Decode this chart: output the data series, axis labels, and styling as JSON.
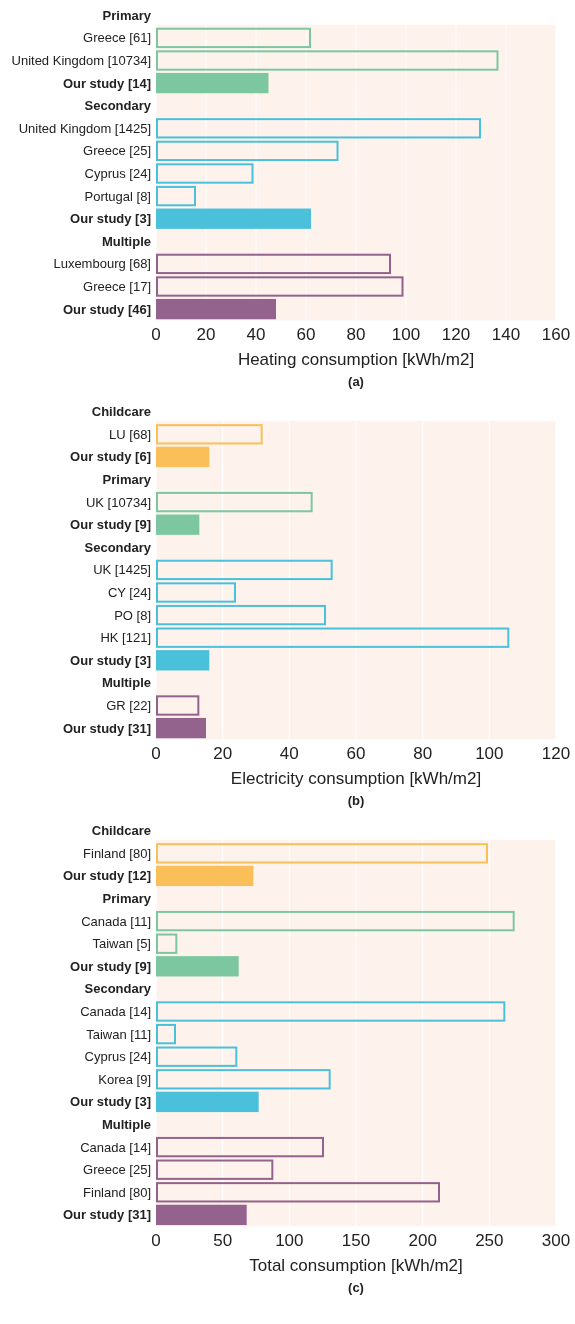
{
  "chart_data": [
    {
      "type": "bar",
      "orientation": "horizontal",
      "xlabel": "Heating consumption [kWh/m2]",
      "annotations": [
        "(a)"
      ],
      "xlim": [
        0,
        160
      ],
      "xticks": [
        0,
        20,
        40,
        60,
        80,
        100,
        120,
        140,
        160
      ],
      "grid": "x",
      "categories": [
        "Primary",
        "Greece [61]",
        "United Kingdom [10734]",
        "Our study [14]",
        "Secondary",
        "United Kingdom [1425]",
        "Greece [25]",
        "Cyprus [24]",
        "Portugal [8]",
        "Our study [3]",
        "Multiple",
        "Luxembourg [68]",
        "Greece [17]",
        "Our study [46]"
      ],
      "series": [
        {
          "color": "#7cc7a0",
          "values": [
            null,
            62,
            137,
            45,
            null,
            null,
            null,
            null,
            null,
            null,
            null,
            null,
            null,
            null
          ]
        },
        {
          "color": "#4bc0da",
          "values": [
            null,
            null,
            null,
            null,
            null,
            130,
            73,
            39,
            16,
            62,
            null,
            null,
            null,
            null
          ]
        },
        {
          "color": "#93628d",
          "values": [
            null,
            null,
            null,
            null,
            null,
            null,
            null,
            null,
            null,
            null,
            null,
            94,
            99,
            48
          ]
        }
      ]
    },
    {
      "type": "bar",
      "orientation": "horizontal",
      "xlabel": "Electricity consumption [kWh/m2]",
      "annotations": [
        "(b)"
      ],
      "xlim": [
        0,
        120
      ],
      "xticks": [
        0,
        20,
        40,
        60,
        80,
        100,
        120
      ],
      "grid": "x",
      "categories": [
        "Childcare",
        "LU [68]",
        "Our study [6]",
        "Primary",
        "UK [10734]",
        "Our study [9]",
        "Secondary",
        "UK [1425]",
        "CY [24]",
        "PO [8]",
        "HK [121]",
        "Our study [3]",
        "Multiple",
        "GR [22]",
        "Our study [31]"
      ],
      "series": [
        {
          "color": "#fbbf5a",
          "values": [
            null,
            32,
            16,
            null,
            null,
            null,
            null,
            null,
            null,
            null,
            null,
            null,
            null,
            null,
            null
          ]
        },
        {
          "color": "#7cc7a0",
          "values": [
            null,
            null,
            null,
            null,
            47,
            13,
            null,
            null,
            null,
            null,
            null,
            null,
            null,
            null,
            null
          ]
        },
        {
          "color": "#4bc0da",
          "values": [
            null,
            null,
            null,
            null,
            null,
            null,
            null,
            53,
            24,
            51,
            106,
            16,
            null,
            null,
            null
          ]
        },
        {
          "color": "#93628d",
          "values": [
            null,
            null,
            null,
            null,
            null,
            null,
            null,
            null,
            null,
            null,
            null,
            null,
            null,
            13,
            15
          ]
        }
      ]
    },
    {
      "type": "bar",
      "orientation": "horizontal",
      "xlabel": "Total consumption [kWh/m2]",
      "annotations": [
        "(c)"
      ],
      "xlim": [
        0,
        300
      ],
      "xticks": [
        0,
        50,
        100,
        150,
        200,
        250,
        300
      ],
      "grid": "x",
      "categories": [
        "Childcare",
        "Finland [80]",
        "Our study [12]",
        "Primary",
        "Canada [11]",
        "Taiwan [5]",
        "Our study [9]",
        "Secondary",
        "Canada [14]",
        "Taiwan [11]",
        "Cyprus [24]",
        "Korea [9]",
        "Our study [3]",
        "Multiple",
        "Canada [14]",
        "Greece [25]",
        "Finland [80]",
        "Our study [31]"
      ],
      "series": [
        {
          "color": "#fbbf5a",
          "values": [
            null,
            249,
            73,
            null,
            null,
            null,
            null,
            null,
            null,
            null,
            null,
            null,
            null,
            null,
            null,
            null,
            null,
            null
          ]
        },
        {
          "color": "#7cc7a0",
          "values": [
            null,
            null,
            null,
            null,
            269,
            16,
            62,
            null,
            null,
            null,
            null,
            null,
            null,
            null,
            null,
            null,
            null,
            null
          ]
        },
        {
          "color": "#4bc0da",
          "values": [
            null,
            null,
            null,
            null,
            null,
            null,
            null,
            null,
            262,
            15,
            61,
            131,
            77,
            null,
            null,
            null,
            null,
            null
          ]
        },
        {
          "color": "#93628d",
          "values": [
            null,
            null,
            null,
            null,
            null,
            null,
            null,
            null,
            null,
            null,
            null,
            null,
            null,
            null,
            126,
            88,
            213,
            68
          ]
        }
      ]
    }
  ]
}
